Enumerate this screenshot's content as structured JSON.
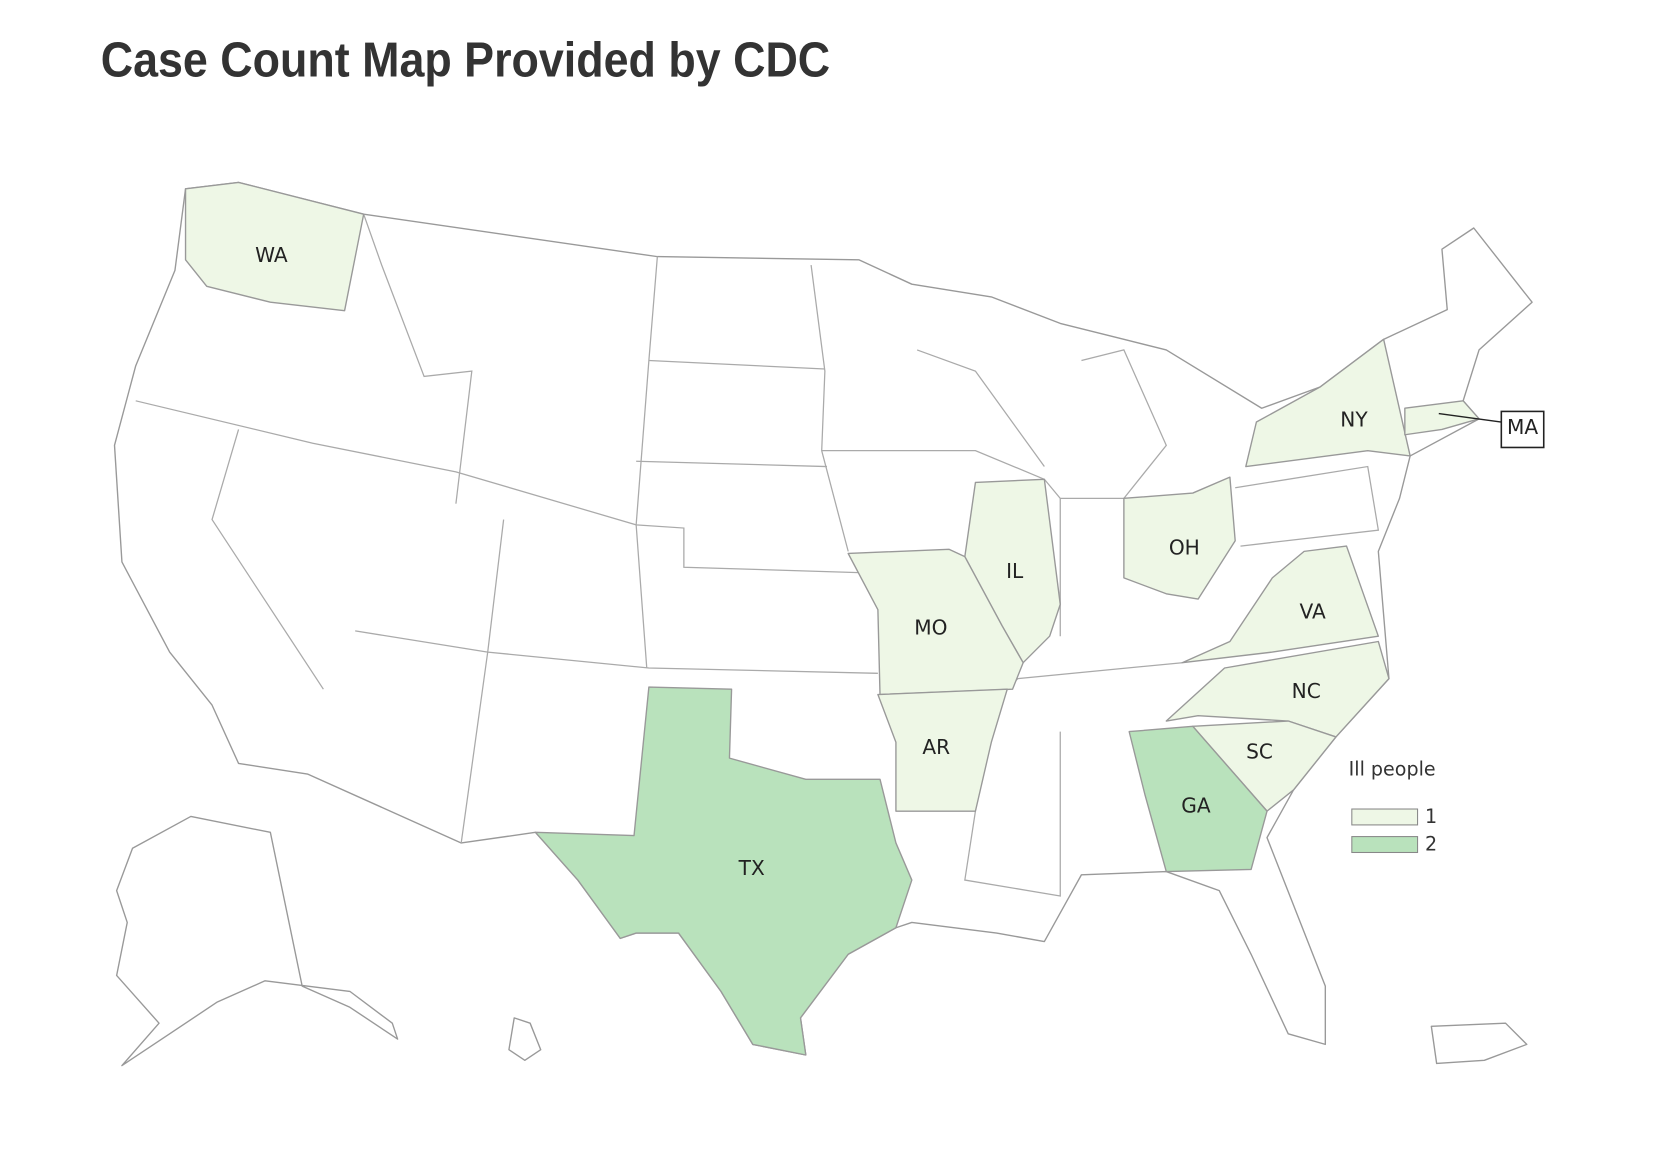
{
  "title": "Case Count Map Provided by CDC",
  "map": {
    "legend": {
      "title": "Ill people",
      "classes": [
        {
          "value": 1,
          "color": "#eef7e6"
        },
        {
          "value": 2,
          "color": "#b9e2bc"
        }
      ]
    },
    "states": [
      {
        "label": "WA",
        "count": 1
      },
      {
        "label": "IL",
        "count": 1
      },
      {
        "label": "MO",
        "count": 1
      },
      {
        "label": "AR",
        "count": 1
      },
      {
        "label": "OH",
        "count": 1
      },
      {
        "label": "NY",
        "count": 1
      },
      {
        "label": "MA",
        "count": 1
      },
      {
        "label": "VA",
        "count": 1
      },
      {
        "label": "NC",
        "count": 1
      },
      {
        "label": "SC",
        "count": 1
      },
      {
        "label": "GA",
        "count": 2
      },
      {
        "label": "TX",
        "count": 2
      }
    ]
  }
}
